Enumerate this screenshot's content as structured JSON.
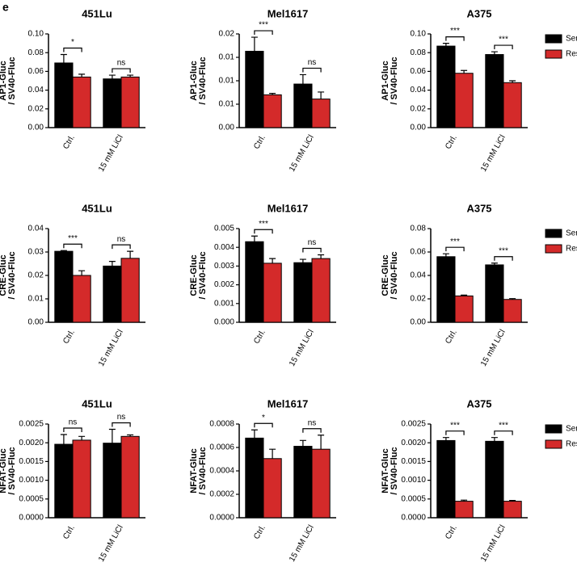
{
  "panel_label": "e",
  "chart_data": [
    {
      "type": "bar",
      "title": "451Lu",
      "ylabel": [
        "AP1-Gluc",
        "/ SV40-Fluc"
      ],
      "categories": [
        "Ctrl.",
        "15 mM LiCl"
      ],
      "series": [
        {
          "color": "#000000",
          "values": [
            0.069,
            0.052
          ],
          "errors": [
            0.009,
            0.004
          ]
        },
        {
          "color": "#d42a2a",
          "values": [
            0.054,
            0.054
          ],
          "errors": [
            0.003,
            0.002
          ]
        }
      ],
      "ylim": [
        0,
        0.1
      ],
      "yticks": [
        {
          "value": 0,
          "label": "0.00"
        },
        {
          "value": 0.02,
          "label": "0.02"
        },
        {
          "value": 0.04,
          "label": "0.04"
        },
        {
          "value": 0.06,
          "label": "0.06"
        },
        {
          "value": 0.08,
          "label": "0.08"
        },
        {
          "value": 0.1,
          "label": "0.10"
        }
      ],
      "significance": [
        "*",
        "ns"
      ]
    },
    {
      "type": "bar",
      "title": "Mel1617",
      "ylabel": [
        "AP1-Gluc",
        "/ SV40-Fluc"
      ],
      "categories": [
        "Ctrl.",
        "15 mM LiCl"
      ],
      "series": [
        {
          "color": "#000000",
          "values": [
            0.0163,
            0.0093
          ],
          "errors": [
            0.003,
            0.002
          ]
        },
        {
          "color": "#d42a2a",
          "values": [
            0.007,
            0.0061
          ],
          "errors": [
            0.0003,
            0.0015
          ]
        }
      ],
      "ylim": [
        0,
        0.02
      ],
      "yticks": [
        {
          "value": 0,
          "label": "0.00"
        },
        {
          "value": 0.005,
          "label": "0.01"
        },
        {
          "value": 0.01,
          "label": "0.01"
        },
        {
          "value": 0.015,
          "label": "0.01"
        },
        {
          "value": 0.02,
          "label": "0.02"
        }
      ],
      "significance": [
        "***",
        "ns"
      ]
    },
    {
      "type": "bar",
      "title": "A375",
      "ylabel": [
        "AP1-Gluc",
        "/ SV40-Fluc"
      ],
      "categories": [
        "Ctrl.",
        "15 mM LiCl"
      ],
      "series": [
        {
          "name": "Sens.",
          "color": "#000000",
          "values": [
            0.087,
            0.078
          ],
          "errors": [
            0.003,
            0.003
          ]
        },
        {
          "name": "Res.",
          "color": "#d42a2a",
          "values": [
            0.058,
            0.048
          ],
          "errors": [
            0.003,
            0.002
          ]
        }
      ],
      "ylim": [
        0,
        0.1
      ],
      "yticks": [
        {
          "value": 0,
          "label": "0.00"
        },
        {
          "value": 0.02,
          "label": "0.02"
        },
        {
          "value": 0.04,
          "label": "0.04"
        },
        {
          "value": 0.06,
          "label": "0.06"
        },
        {
          "value": 0.08,
          "label": "0.08"
        },
        {
          "value": 0.1,
          "label": "0.10"
        }
      ],
      "significance": [
        "***",
        "***"
      ],
      "legend": "upper right"
    },
    {
      "type": "bar",
      "title": "451Lu",
      "ylabel": [
        "CRE-Gluc",
        "/ SV40-Fluc"
      ],
      "categories": [
        "Ctrl.",
        "15 mM LiCl"
      ],
      "series": [
        {
          "color": "#000000",
          "values": [
            0.0303,
            0.024
          ],
          "errors": [
            0.0003,
            0.002
          ]
        },
        {
          "color": "#d42a2a",
          "values": [
            0.02,
            0.0273
          ],
          "errors": [
            0.002,
            0.003
          ]
        }
      ],
      "ylim": [
        0,
        0.04
      ],
      "yticks": [
        {
          "value": 0,
          "label": "0.00"
        },
        {
          "value": 0.01,
          "label": "0.01"
        },
        {
          "value": 0.02,
          "label": "0.02"
        },
        {
          "value": 0.03,
          "label": "0.03"
        },
        {
          "value": 0.04,
          "label": "0.04"
        }
      ],
      "significance": [
        "***",
        "ns"
      ]
    },
    {
      "type": "bar",
      "title": "Mel1617",
      "ylabel": [
        "CRE-Gluc",
        "/ SV40-Fluc"
      ],
      "categories": [
        "Ctrl.",
        "15 mM LiCl"
      ],
      "series": [
        {
          "color": "#000000",
          "values": [
            0.0043,
            0.00318
          ],
          "errors": [
            0.0003,
            0.00018
          ]
        },
        {
          "color": "#d42a2a",
          "values": [
            0.00315,
            0.0034
          ],
          "errors": [
            0.00025,
            0.0002
          ]
        }
      ],
      "ylim": [
        0,
        0.005
      ],
      "yticks": [
        {
          "value": 0,
          "label": "0.000"
        },
        {
          "value": 0.001,
          "label": "0.001"
        },
        {
          "value": 0.002,
          "label": "0.002"
        },
        {
          "value": 0.003,
          "label": "0.003"
        },
        {
          "value": 0.004,
          "label": "0.004"
        },
        {
          "value": 0.005,
          "label": "0.005"
        }
      ],
      "significance": [
        "***",
        "ns"
      ]
    },
    {
      "type": "bar",
      "title": "A375",
      "ylabel": [
        "CRE-Gluc",
        "/ SV40-Fluc"
      ],
      "categories": [
        "Ctrl.",
        "15 mM LiCl"
      ],
      "series": [
        {
          "name": "Sens.",
          "color": "#000000",
          "values": [
            0.056,
            0.049
          ],
          "errors": [
            0.0025,
            0.0015
          ]
        },
        {
          "name": "Res.",
          "color": "#d42a2a",
          "values": [
            0.0225,
            0.0195
          ],
          "errors": [
            0.0007,
            0.0007
          ]
        }
      ],
      "ylim": [
        0,
        0.08
      ],
      "yticks": [
        {
          "value": 0,
          "label": "0.00"
        },
        {
          "value": 0.02,
          "label": "0.02"
        },
        {
          "value": 0.04,
          "label": "0.04"
        },
        {
          "value": 0.06,
          "label": "0.06"
        },
        {
          "value": 0.08,
          "label": "0.08"
        }
      ],
      "significance": [
        "***",
        "***"
      ],
      "legend": "upper right"
    },
    {
      "type": "bar",
      "title": "451Lu",
      "ylabel": [
        "NFAT-Gluc",
        "/ SV40-Fluc"
      ],
      "categories": [
        "Ctrl.",
        "15 mM LiCl"
      ],
      "series": [
        {
          "color": "#000000",
          "values": [
            0.00196,
            0.00199
          ],
          "errors": [
            0.00026,
            0.00037
          ]
        },
        {
          "color": "#d42a2a",
          "values": [
            0.00207,
            0.00217
          ],
          "errors": [
            0.0001,
            4e-05
          ]
        }
      ],
      "ylim": [
        0,
        0.0025
      ],
      "yticks": [
        {
          "value": 0,
          "label": "0.0000"
        },
        {
          "value": 0.0005,
          "label": "0.0005"
        },
        {
          "value": 0.001,
          "label": "0.0010"
        },
        {
          "value": 0.0015,
          "label": "0.0015"
        },
        {
          "value": 0.002,
          "label": "0.0020"
        },
        {
          "value": 0.0025,
          "label": "0.0025"
        }
      ],
      "significance": [
        "ns",
        "ns"
      ]
    },
    {
      "type": "bar",
      "title": "Mel1617",
      "ylabel": [
        "NFAT-Gluc",
        "/ SV40-Fluc"
      ],
      "categories": [
        "Ctrl.",
        "15 mM LiCl"
      ],
      "series": [
        {
          "color": "#000000",
          "values": [
            0.00068,
            0.00061
          ],
          "errors": [
            7e-05,
            5e-05
          ]
        },
        {
          "color": "#d42a2a",
          "values": [
            0.000505,
            0.000585
          ],
          "errors": [
            8e-05,
            0.00012
          ]
        }
      ],
      "ylim": [
        0,
        0.0008
      ],
      "yticks": [
        {
          "value": 0,
          "label": "0.0000"
        },
        {
          "value": 0.0002,
          "label": "0.0002"
        },
        {
          "value": 0.0004,
          "label": "0.0004"
        },
        {
          "value": 0.0006,
          "label": "0.0006"
        },
        {
          "value": 0.0008,
          "label": "0.0008"
        }
      ],
      "significance": [
        "*",
        "ns"
      ]
    },
    {
      "type": "bar",
      "title": "A375",
      "ylabel": [
        "NFAT-Gluc",
        "/ SV40-Fluc"
      ],
      "categories": [
        "Ctrl.",
        "15 mM LiCl"
      ],
      "series": [
        {
          "name": "Sens.",
          "color": "#000000",
          "values": [
            0.00206,
            0.00204
          ],
          "errors": [
            8e-05,
            0.0001
          ]
        },
        {
          "name": "Res.",
          "color": "#d42a2a",
          "values": [
            0.00044,
            0.00044
          ],
          "errors": [
            3e-05,
            2e-05
          ]
        }
      ],
      "ylim": [
        0,
        0.0025
      ],
      "yticks": [
        {
          "value": 0,
          "label": "0.0000"
        },
        {
          "value": 0.0005,
          "label": "0.0005"
        },
        {
          "value": 0.001,
          "label": "0.0010"
        },
        {
          "value": 0.0015,
          "label": "0.0015"
        },
        {
          "value": 0.002,
          "label": "0.0020"
        },
        {
          "value": 0.0025,
          "label": "0.0025"
        }
      ],
      "significance": [
        "***",
        "***"
      ],
      "legend": "upper right"
    }
  ]
}
